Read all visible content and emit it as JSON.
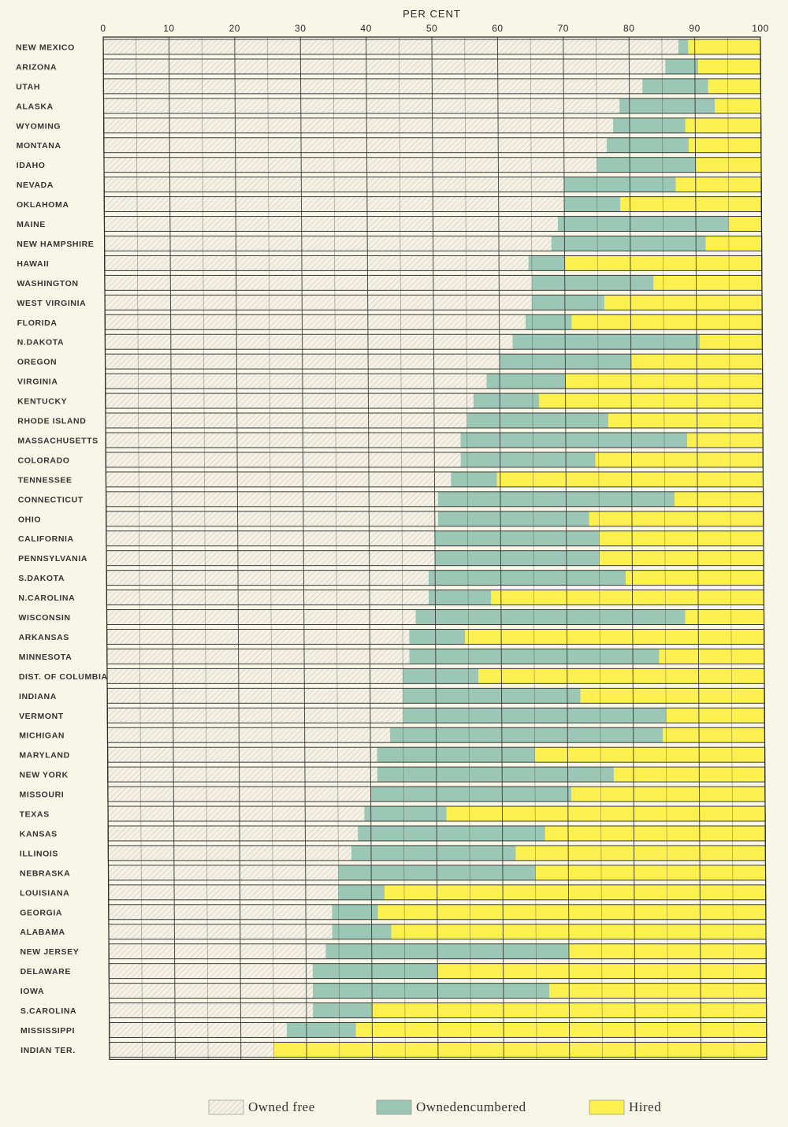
{
  "chart_data": {
    "type": "bar",
    "orientation": "horizontal",
    "stacked": true,
    "xlabel": "PER CENT",
    "xlim": [
      0,
      100
    ],
    "xticks": [
      "0",
      "10",
      "20",
      "30",
      "40",
      "50",
      "60",
      "70",
      "80",
      "90",
      "100"
    ],
    "grid": true,
    "legend_position": "bottom",
    "categories": [
      "NEW MEXICO",
      "ARIZONA",
      "UTAH",
      "ALASKA",
      "WYOMING",
      "MONTANA",
      "IDAHO",
      "NEVADA",
      "OKLAHOMA",
      "MAINE",
      "NEW HAMPSHIRE",
      "HAWAII",
      "WASHINGTON",
      "WEST VIRGINIA",
      "FLORIDA",
      "N.DAKOTA",
      "OREGON",
      "VIRGINIA",
      "KENTUCKY",
      "RHODE ISLAND",
      "MASSACHUSETTS",
      "COLORADO",
      "TENNESSEE",
      "CONNECTICUT",
      "OHIO",
      "CALIFORNIA",
      "PENNSYLVANIA",
      "S.DAKOTA",
      "N.CAROLINA",
      "WISCONSIN",
      "ARKANSAS",
      "MINNESOTA",
      "DIST. OF COLUMBIA",
      "INDIANA",
      "VERMONT",
      "MICHIGAN",
      "MARYLAND",
      "NEW YORK",
      "MISSOURI",
      "TEXAS",
      "KANSAS",
      "ILLINOIS",
      "NEBRASKA",
      "LOUISIANA",
      "GEORGIA",
      "ALABAMA",
      "NEW JERSEY",
      "DELAWARE",
      "IOWA",
      "S.CAROLINA",
      "MISSISSIPPI",
      "INDIAN TER."
    ],
    "series": [
      {
        "name": "Owned free",
        "color": "#f4f1e4",
        "pattern": "hatch",
        "values": [
          87.5,
          85.5,
          82,
          78.5,
          77.5,
          76.5,
          75,
          70,
          70,
          69,
          68,
          64.5,
          65,
          65,
          64,
          62,
          60,
          58,
          56,
          55,
          54,
          54,
          52.5,
          50.5,
          50.5,
          50,
          50,
          49,
          49,
          47,
          46,
          46,
          45,
          45,
          45,
          43,
          41,
          41,
          40,
          39,
          38,
          37,
          35,
          35,
          34,
          34,
          33,
          31,
          31,
          31,
          27,
          25
        ]
      },
      {
        "name": "Ownedencumbered",
        "color": "#9cc7b6",
        "values": [
          1.5,
          5,
          10,
          14.5,
          11,
          12.5,
          15,
          17,
          8.5,
          26,
          23.5,
          5.5,
          18.5,
          11,
          7,
          28.5,
          20,
          12,
          10,
          21.5,
          34.5,
          20.5,
          7,
          36,
          23,
          25,
          25,
          30,
          9.5,
          41,
          8.5,
          38,
          11.5,
          27,
          40,
          41.5,
          24,
          36,
          30.5,
          12.5,
          28.5,
          25,
          30,
          7,
          7,
          9,
          37,
          19,
          36,
          9,
          10.5,
          0
        ]
      },
      {
        "name": "Hired",
        "color": "#fbf04d",
        "values": [
          11,
          9.5,
          8,
          7,
          11.5,
          11,
          10,
          13,
          21.5,
          5,
          8.5,
          30,
          16.5,
          24,
          29,
          9.5,
          20,
          30,
          34,
          23.5,
          11.5,
          25.5,
          40.5,
          13.5,
          26.5,
          25,
          25,
          21,
          41.5,
          12,
          45.5,
          16,
          43.5,
          28,
          15,
          15.5,
          35,
          23,
          29.5,
          48.5,
          33.5,
          38,
          35,
          58,
          59,
          57,
          30,
          50,
          33,
          60,
          62.5,
          75
        ]
      }
    ]
  }
}
